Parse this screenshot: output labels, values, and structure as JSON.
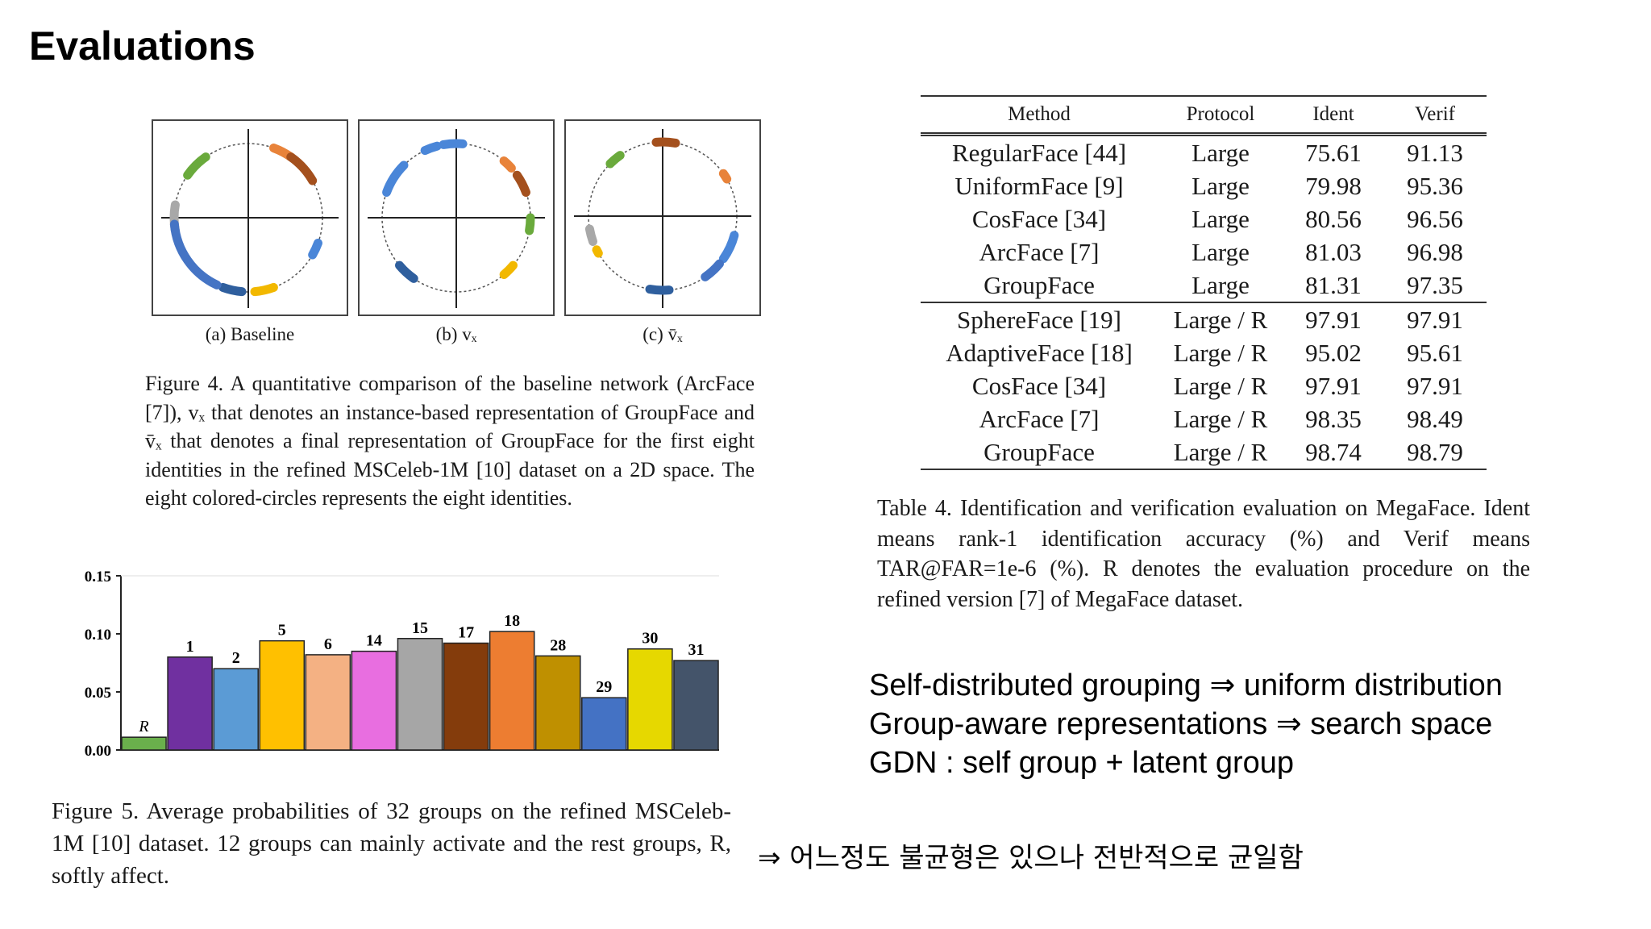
{
  "slide": {
    "title": "Evaluations"
  },
  "figure4": {
    "panels": [
      {
        "label": "(a) Baseline"
      },
      {
        "label": "(b) vₓ"
      },
      {
        "label": "(c) v̄ₓ"
      }
    ],
    "identity_colors": [
      "#e8833a",
      "#a4501d",
      "#4a86d8",
      "#6aaa3c",
      "#a8a8a8",
      "#f2b800",
      "#2f5f9e",
      "#4574c4"
    ],
    "caption": "Figure 4. A quantitative comparison of the baseline network (ArcFace [7]), vₓ that denotes an instance-based representation of GroupFace and v̄ₓ that denotes a final representation of GroupFace for the first eight identities in the refined MSCeleb-1M [10] dataset on a 2D space. The eight colored-circles represents the eight identities."
  },
  "chart_data": {
    "type": "bar",
    "categories": [
      "R",
      "1",
      "2",
      "5",
      "6",
      "14",
      "15",
      "17",
      "18",
      "28",
      "29",
      "30",
      "31"
    ],
    "values": [
      0.011,
      0.08,
      0.07,
      0.094,
      0.082,
      0.085,
      0.096,
      0.092,
      0.102,
      0.081,
      0.045,
      0.087,
      0.077
    ],
    "colors": [
      "#6ab04c",
      "#7030a0",
      "#5b9bd5",
      "#ffc000",
      "#f4b183",
      "#e86ee0",
      "#a6a6a6",
      "#843c0c",
      "#ed7d31",
      "#bf9000",
      "#4472c4",
      "#e6d800",
      "#44546a"
    ],
    "yticks": [
      "0.00",
      "0.05",
      "0.10",
      "0.15"
    ],
    "ylim": [
      0,
      0.15
    ],
    "grid": false,
    "title": "",
    "xlabel": "",
    "ylabel": ""
  },
  "figure5": {
    "caption": "Figure 5. Average probabilities of 32 groups on the refined MSCeleb-1M [10] dataset. 12 groups can mainly activate and the rest groups, R, softly affect."
  },
  "table4": {
    "headers": [
      "Method",
      "Protocol",
      "Ident",
      "Verif"
    ],
    "rows_large": [
      [
        "RegularFace [44]",
        "Large",
        "75.61",
        "91.13"
      ],
      [
        "UniformFace [9]",
        "Large",
        "79.98",
        "95.36"
      ],
      [
        "CosFace [34]",
        "Large",
        "80.56",
        "96.56"
      ],
      [
        "ArcFace [7]",
        "Large",
        "81.03",
        "96.98"
      ],
      [
        "GroupFace",
        "Large",
        "81.31",
        "97.35"
      ]
    ],
    "rows_refined": [
      [
        "SphereFace [19]",
        "Large / R",
        "97.91",
        "97.91"
      ],
      [
        "AdaptiveFace [18]",
        "Large / R",
        "95.02",
        "95.61"
      ],
      [
        "CosFace [34]",
        "Large / R",
        "97.91",
        "97.91"
      ],
      [
        "ArcFace [7]",
        "Large / R",
        "98.35",
        "98.49"
      ],
      [
        "GroupFace",
        "Large / R",
        "98.74",
        "98.79"
      ]
    ],
    "caption": "Table 4. Identification and verification evaluation on MegaFace. Ident means rank-1 identification accuracy (%) and Verif means TAR@FAR=1e-6 (%). R denotes the evaluation procedure on the refined version [7] of MegaFace dataset."
  },
  "summary": {
    "line1": "Self-distributed grouping ⇒ uniform distribution",
    "line2": "Group-aware representations ⇒ search space",
    "line3": "GDN : self group + latent group"
  },
  "note": "⇒ 어느정도 불균형은 있으나 전반적으로 균일함"
}
